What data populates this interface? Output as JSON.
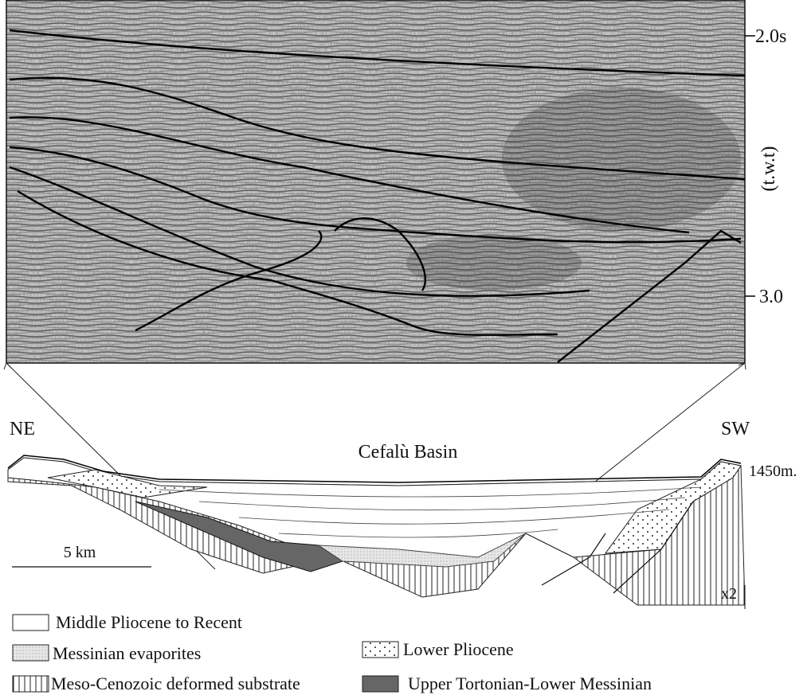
{
  "figure": {
    "seismic": {
      "time_labels": [
        "2.0s",
        "3.0"
      ],
      "axis_label": "(t.w.t)"
    },
    "section": {
      "left_label": "NE",
      "right_label": "SW",
      "title": "Cefalù Basin",
      "depth_label": "1450m.",
      "scale_label": "5 km",
      "exaggeration": "x2"
    },
    "legend": [
      "Middle Pliocene to Recent",
      "Messinian evaporites",
      "Lower Pliocene",
      "Meso-Cenozoic deformed substrate",
      "Upper Tortonian-Lower Messinian"
    ]
  }
}
